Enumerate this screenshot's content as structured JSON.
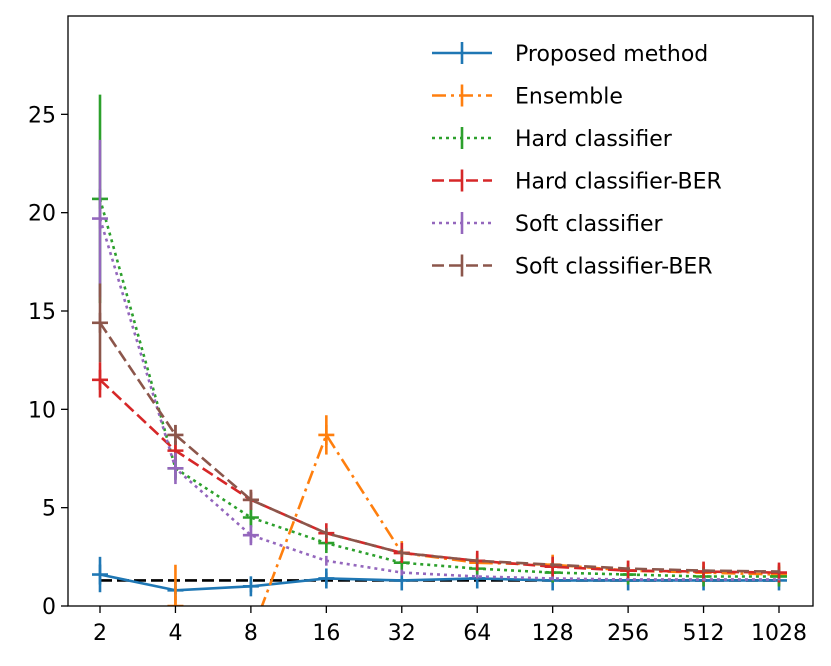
{
  "chart_data": {
    "type": "line",
    "categories": [
      "2",
      "4",
      "8",
      "16",
      "32",
      "64",
      "128",
      "256",
      "512",
      "1028"
    ],
    "ylim": [
      0,
      30
    ],
    "yticks": [
      "0",
      "5",
      "10",
      "15",
      "20",
      "25"
    ],
    "grid": false,
    "legend_position": "top-right",
    "reference_line": {
      "value": 1.3,
      "color": "#000000",
      "style": "dashed"
    },
    "series": [
      {
        "name": "Proposed method",
        "color": "#1f77b4",
        "style": "solid",
        "values": [
          1.6,
          0.8,
          1.0,
          1.4,
          1.3,
          1.4,
          1.3,
          1.3,
          1.3,
          1.3
        ],
        "errors": [
          0.9,
          0.2,
          0.3,
          0.3,
          0.15,
          0.15,
          0.1,
          0.1,
          0.1,
          0.1
        ]
      },
      {
        "name": "Ensemble",
        "color": "#ff7f0e",
        "style": "dashdot",
        "values": [
          null,
          0.0,
          -1.5,
          8.7,
          2.7,
          2.2,
          2.1,
          1.8,
          1.7,
          1.6
        ],
        "errors": [
          null,
          2.1,
          0,
          1.0,
          0.6,
          0.45,
          0.35,
          0.2,
          0.15,
          0.1
        ]
      },
      {
        "name": "Hard classifier",
        "color": "#2ca02c",
        "style": "dotted",
        "values": [
          20.7,
          7.0,
          4.5,
          3.2,
          2.2,
          1.9,
          1.7,
          1.6,
          1.5,
          1.5
        ],
        "errors": [
          5.3,
          0.6,
          0.5,
          0.35,
          0.2,
          0.15,
          0.1,
          0.1,
          0.1,
          0.1
        ]
      },
      {
        "name": "Hard classifier-BER",
        "color": "#d62728",
        "style": "dashed",
        "values": [
          11.5,
          7.9,
          5.4,
          3.7,
          2.7,
          2.3,
          2.0,
          1.8,
          1.75,
          1.7
        ],
        "errors": [
          0.9,
          0.5,
          0.35,
          0.25,
          0.2,
          0.15,
          0.1,
          0.1,
          0.1,
          0.1
        ]
      },
      {
        "name": "Soft classifier",
        "color": "#9467bd",
        "style": "dotted",
        "values": [
          19.7,
          7.0,
          3.6,
          2.3,
          1.7,
          1.5,
          1.4,
          1.35,
          1.35,
          1.35
        ],
        "errors": [
          4.0,
          0.8,
          0.4,
          0.25,
          0.15,
          0.1,
          0.1,
          0.05,
          0.05,
          0.05
        ],
        "markers_at": [
          0,
          1,
          2
        ]
      },
      {
        "name": "Soft classifier-BER",
        "color": "#8c564b",
        "style": "dashed",
        "values": [
          14.4,
          8.7,
          5.4,
          3.7,
          2.7,
          2.3,
          2.1,
          1.9,
          1.8,
          1.75
        ],
        "errors": [
          2.0,
          0.5,
          0.4,
          0.25,
          0.2,
          0.15,
          0.1,
          0.1,
          0.1,
          0.1
        ],
        "markers_at": [
          0,
          1,
          2
        ]
      }
    ]
  }
}
